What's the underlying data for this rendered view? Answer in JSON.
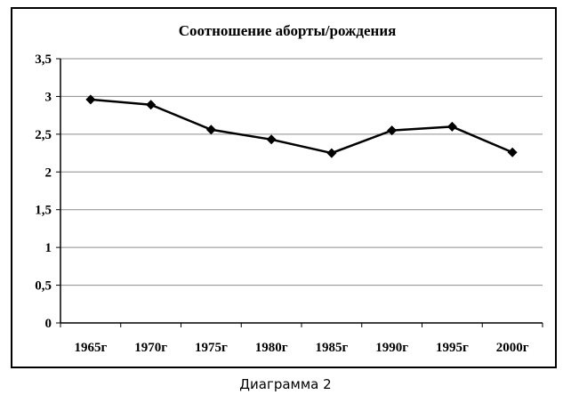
{
  "chart_data": {
    "type": "line",
    "title": "Соотношение аборты/рождения",
    "xlabel": "",
    "ylabel": "",
    "categories": [
      "1965г",
      "1970г",
      "1975г",
      "1980г",
      "1985г",
      "1990г",
      "1995г",
      "2000г"
    ],
    "series": [
      {
        "values": [
          2.96,
          2.89,
          2.56,
          2.43,
          2.25,
          2.55,
          2.6,
          2.26
        ]
      }
    ],
    "ylim": [
      0,
      3.5
    ],
    "yticks": [
      0,
      0.5,
      1,
      1.5,
      2,
      2.5,
      3,
      3.5
    ],
    "ytick_labels": [
      "0",
      "0,5",
      "1",
      "1,5",
      "2",
      "2,5",
      "3",
      "3,5"
    ],
    "grid": "horizontal",
    "legend": "none",
    "marker": "diamond",
    "line_color": "#000000",
    "grid_color": "#8c8c8c"
  },
  "caption": "Диаграмма 2"
}
